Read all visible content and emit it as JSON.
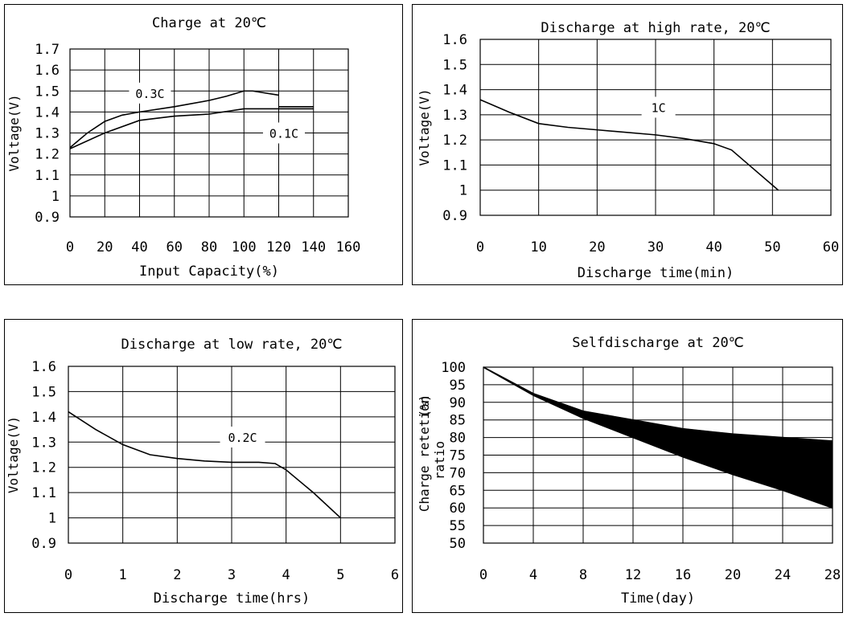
{
  "chart_data": [
    {
      "type": "line",
      "title": "Charge at 20℃",
      "xlabel": "Input Capacity(%)",
      "ylabel": "Voltage(V)",
      "xlim": [
        0,
        160
      ],
      "ylim": [
        0.9,
        1.7
      ],
      "x_ticks": [
        "0",
        "20",
        "40",
        "60",
        "80",
        "100",
        "120",
        "140",
        "160"
      ],
      "y_ticks": [
        "0.9",
        "1",
        "1.1",
        "1.2",
        "1.3",
        "1.4",
        "1.5",
        "1.6",
        "1.7"
      ],
      "grid": true,
      "series": [
        {
          "name": "0.3C",
          "points": [
            [
              0,
              1.23
            ],
            [
              10,
              1.3
            ],
            [
              20,
              1.355
            ],
            [
              30,
              1.385
            ],
            [
              40,
              1.4
            ],
            [
              60,
              1.425
            ],
            [
              80,
              1.455
            ],
            [
              90,
              1.475
            ],
            [
              100,
              1.5
            ],
            [
              105,
              1.5
            ],
            [
              120,
              1.48
            ]
          ]
        },
        {
          "name": "0.1C",
          "points": [
            [
              0,
              1.225
            ],
            [
              20,
              1.3
            ],
            [
              40,
              1.36
            ],
            [
              60,
              1.38
            ],
            [
              80,
              1.39
            ],
            [
              100,
              1.415
            ],
            [
              120,
              1.415
            ],
            [
              140,
              1.415
            ]
          ]
        },
        {
          "name": "",
          "points": [
            [
              120,
              1.425
            ],
            [
              140,
              1.425
            ]
          ]
        }
      ]
    },
    {
      "type": "line",
      "title": "Discharge at high rate, 20℃",
      "xlabel": "Discharge time(min)",
      "ylabel": "Voltage(V)",
      "xlim": [
        0,
        60
      ],
      "ylim": [
        0.9,
        1.6
      ],
      "x_ticks": [
        "0",
        "10",
        "20",
        "30",
        "40",
        "50",
        "60"
      ],
      "y_ticks": [
        "0.9",
        "1",
        "1.1",
        "1.2",
        "1.3",
        "1.4",
        "1.5",
        "1.6"
      ],
      "grid": true,
      "series": [
        {
          "name": "1C",
          "points": [
            [
              0,
              1.36
            ],
            [
              5,
              1.31
            ],
            [
              10,
              1.265
            ],
            [
              15,
              1.25
            ],
            [
              20,
              1.24
            ],
            [
              30,
              1.22
            ],
            [
              35,
              1.205
            ],
            [
              40,
              1.185
            ],
            [
              43,
              1.16
            ],
            [
              46,
              1.1
            ],
            [
              51,
              1.0
            ]
          ]
        }
      ]
    },
    {
      "type": "line",
      "title": "Discharge at low rate, 20℃",
      "xlabel": "Discharge time(hrs)",
      "ylabel": "Voltage(V)",
      "xlim": [
        0,
        6
      ],
      "ylim": [
        0.9,
        1.6
      ],
      "x_ticks": [
        "0",
        "1",
        "2",
        "3",
        "4",
        "5",
        "6"
      ],
      "y_ticks": [
        "0.9",
        "1",
        "1.1",
        "1.2",
        "1.3",
        "1.4",
        "1.5",
        "1.6"
      ],
      "grid": true,
      "series": [
        {
          "name": "0.2C",
          "points": [
            [
              0,
              1.42
            ],
            [
              0.5,
              1.35
            ],
            [
              1,
              1.29
            ],
            [
              1.5,
              1.25
            ],
            [
              2,
              1.235
            ],
            [
              2.5,
              1.225
            ],
            [
              3,
              1.22
            ],
            [
              3.5,
              1.22
            ],
            [
              3.8,
              1.215
            ],
            [
              4,
              1.19
            ],
            [
              4.5,
              1.1
            ],
            [
              5,
              1.0
            ]
          ]
        }
      ]
    },
    {
      "type": "area",
      "title": "Selfdischarge at 20℃",
      "xlabel": "Time(day)",
      "ylabel": "Charge retetion ratio (%)",
      "xlim": [
        0,
        28
      ],
      "ylim": [
        50,
        100
      ],
      "x_ticks": [
        "0",
        "4",
        "8",
        "12",
        "16",
        "20",
        "24",
        "28"
      ],
      "y_ticks": [
        "50",
        "55",
        "60",
        "65",
        "70",
        "75",
        "80",
        "85",
        "90",
        "95",
        "100"
      ],
      "grid": true,
      "upper": [
        [
          0,
          100
        ],
        [
          4,
          92.5
        ],
        [
          8,
          87.5
        ],
        [
          12,
          85
        ],
        [
          16,
          82.5
        ],
        [
          20,
          81
        ],
        [
          24,
          80
        ],
        [
          28,
          79
        ]
      ],
      "lower": [
        [
          0,
          100
        ],
        [
          4,
          92
        ],
        [
          8,
          85.5
        ],
        [
          12,
          80
        ],
        [
          16,
          74.5
        ],
        [
          20,
          69.5
        ],
        [
          24,
          65
        ],
        [
          28,
          60
        ]
      ]
    }
  ]
}
